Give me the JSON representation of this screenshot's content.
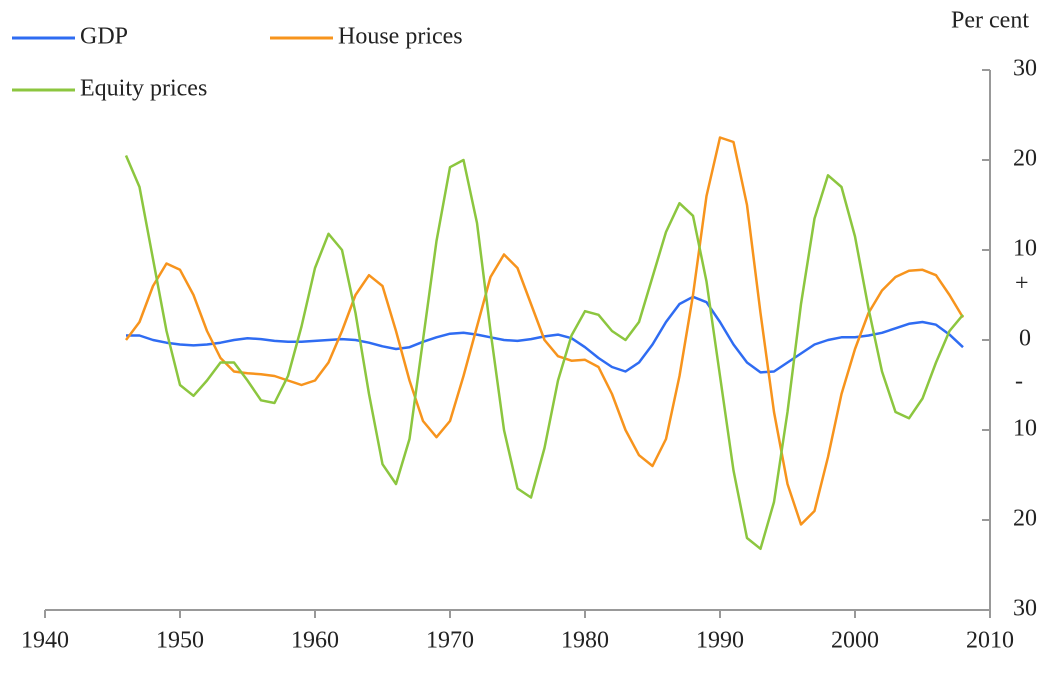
{
  "chart_data": {
    "type": "line",
    "unit_label": "Per cent",
    "annotations": [
      "+",
      "-"
    ],
    "x": [
      1946,
      1947,
      1948,
      1949,
      1950,
      1951,
      1952,
      1953,
      1954,
      1955,
      1956,
      1957,
      1958,
      1959,
      1960,
      1961,
      1962,
      1963,
      1964,
      1965,
      1966,
      1967,
      1968,
      1969,
      1970,
      1971,
      1972,
      1973,
      1974,
      1975,
      1976,
      1977,
      1978,
      1979,
      1980,
      1981,
      1982,
      1983,
      1984,
      1985,
      1986,
      1987,
      1988,
      1989,
      1990,
      1991,
      1992,
      1993,
      1994,
      1995,
      1996,
      1997,
      1998,
      1999,
      2000,
      2001,
      2002,
      2003,
      2004,
      2005,
      2006,
      2007,
      2008
    ],
    "series": [
      {
        "name": "GDP",
        "color": "#2f6cf2",
        "values": [
          0.5,
          0.5,
          0,
          -0.3,
          -0.5,
          -0.6,
          -0.5,
          -0.3,
          0,
          0.2,
          0.1,
          -0.1,
          -0.2,
          -0.2,
          -0.1,
          0,
          0.1,
          0,
          -0.3,
          -0.7,
          -1,
          -0.8,
          -0.2,
          0.3,
          0.7,
          0.8,
          0.6,
          0.3,
          0,
          -0.1,
          0.1,
          0.4,
          0.6,
          0.2,
          -0.8,
          -2,
          -3,
          -3.5,
          -2.5,
          -0.5,
          2,
          4,
          4.8,
          4.2,
          2,
          -0.5,
          -2.5,
          -3.6,
          -3.5,
          -2.5,
          -1.5,
          -0.5,
          0,
          0.3,
          0.3,
          0.5,
          0.8,
          1.3,
          1.8,
          2,
          1.7,
          0.6,
          -0.8
        ]
      },
      {
        "name": "House prices",
        "color": "#f7941d",
        "values": [
          0,
          2,
          6,
          8.5,
          7.8,
          5,
          1,
          -2,
          -3.5,
          -3.7,
          -3.8,
          -4,
          -4.5,
          -5,
          -4.5,
          -2.5,
          1,
          5,
          7.2,
          6,
          1,
          -4.5,
          -9,
          -10.8,
          -9,
          -4,
          1.5,
          7,
          9.5,
          8,
          4,
          0,
          -1.8,
          -2.3,
          -2.2,
          -3,
          -6,
          -10,
          -12.8,
          -14,
          -11,
          -4,
          5,
          16,
          22.5,
          22,
          15,
          3,
          -8,
          -16,
          -20.5,
          -19,
          -13,
          -6,
          -1,
          3,
          5.5,
          7,
          7.7,
          7.8,
          7.2,
          5,
          2.5
        ]
      },
      {
        "name": "Equity prices",
        "color": "#8cc63f",
        "values": [
          20.5,
          17,
          9,
          1,
          -5,
          -6.2,
          -4.5,
          -2.5,
          -2.5,
          -4.5,
          -6.7,
          -7,
          -4,
          1.5,
          8,
          11.8,
          10,
          3,
          -6,
          -13.8,
          -16,
          -11,
          0,
          11,
          19.2,
          20,
          13,
          1,
          -10,
          -16.5,
          -17.5,
          -12,
          -4.5,
          0.5,
          3.2,
          2.8,
          1,
          0,
          2,
          7,
          12,
          15.2,
          13.8,
          6.5,
          -4,
          -14.5,
          -22,
          -23.2,
          -18,
          -8,
          4,
          13.5,
          18.3,
          17,
          11.5,
          3.5,
          -3.5,
          -8,
          -8.7,
          -6.5,
          -2.5,
          1,
          2.8
        ]
      }
    ],
    "xlim": [
      1940,
      2010
    ],
    "xticks": [
      1940,
      1950,
      1960,
      1970,
      1980,
      1990,
      2000,
      2010
    ],
    "ylim": [
      -30,
      30
    ],
    "yticks": [
      {
        "value": -30,
        "label": "30"
      },
      {
        "value": -20,
        "label": "20"
      },
      {
        "value": -10,
        "label": "10"
      },
      0,
      10,
      20,
      30
    ],
    "y_axis_side": "right"
  }
}
